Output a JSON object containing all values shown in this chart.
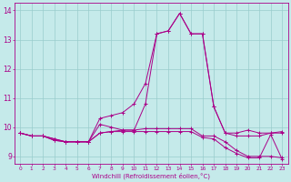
{
  "xlabel": "Windchill (Refroidissement éolien,°C)",
  "xlim": [
    -0.5,
    23.5
  ],
  "ylim": [
    8.75,
    14.25
  ],
  "xticks": [
    0,
    1,
    2,
    3,
    4,
    5,
    6,
    7,
    8,
    9,
    10,
    11,
    12,
    13,
    14,
    15,
    16,
    17,
    18,
    19,
    20,
    21,
    22,
    23
  ],
  "yticks": [
    9,
    10,
    11,
    12,
    13,
    14
  ],
  "bg_color": "#c5eaea",
  "line_color": "#aa0088",
  "grid_color": "#99cccc",
  "lines": [
    [
      9.8,
      9.7,
      9.7,
      9.6,
      9.5,
      9.5,
      9.5,
      10.3,
      10.4,
      10.5,
      10.8,
      11.5,
      13.2,
      13.3,
      13.9,
      13.2,
      13.2,
      10.7,
      9.8,
      9.8,
      9.9,
      9.8,
      9.8,
      9.85
    ],
    [
      9.8,
      9.7,
      9.7,
      9.6,
      9.5,
      9.5,
      9.5,
      10.1,
      10.0,
      9.9,
      9.9,
      10.8,
      13.2,
      13.3,
      13.9,
      13.2,
      13.2,
      10.7,
      9.8,
      9.7,
      9.7,
      9.7,
      9.8,
      9.8
    ],
    [
      9.8,
      9.7,
      9.7,
      9.55,
      9.5,
      9.5,
      9.5,
      9.8,
      9.85,
      9.9,
      9.9,
      9.95,
      9.95,
      9.95,
      9.95,
      9.95,
      9.7,
      9.7,
      9.5,
      9.2,
      9.0,
      9.0,
      9.0,
      8.95
    ],
    [
      9.8,
      9.7,
      9.7,
      9.55,
      9.5,
      9.5,
      9.5,
      9.8,
      9.85,
      9.85,
      9.85,
      9.85,
      9.85,
      9.85,
      9.85,
      9.85,
      9.65,
      9.6,
      9.3,
      9.1,
      8.95,
      8.95,
      9.75,
      8.9
    ]
  ]
}
